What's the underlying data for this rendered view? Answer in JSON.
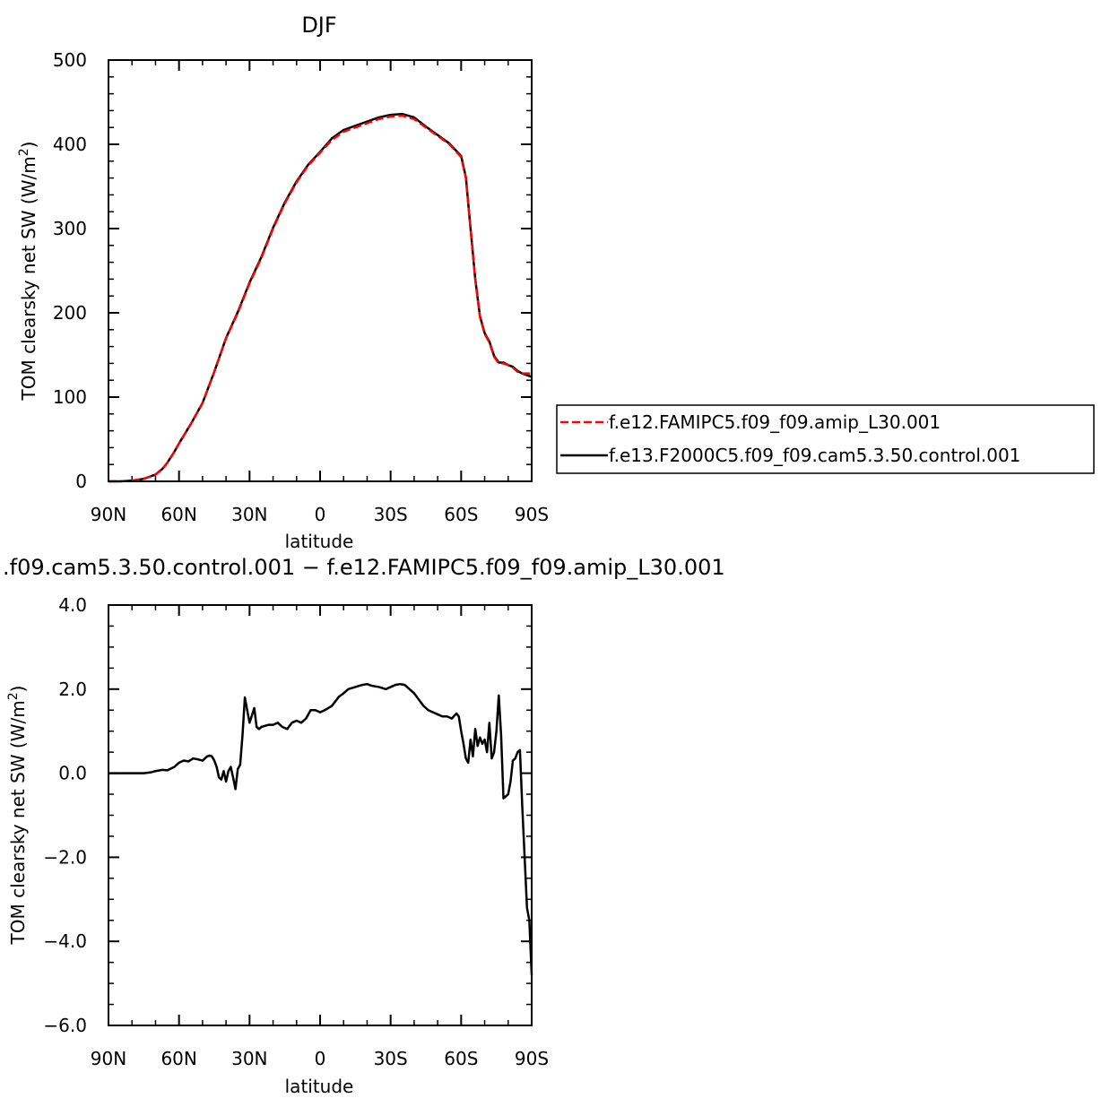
{
  "chart_data": [
    {
      "type": "line",
      "title": "DJF",
      "xlabel": "latitude",
      "ylabel": "TOM clearsky net SW (W/m²)",
      "ylabel_main": "TOM clearsky net SW (W/m",
      "ylabel_sup": "2",
      "ylabel_close": ")",
      "xlim": [
        90,
        -90
      ],
      "ylim": [
        0,
        500
      ],
      "x_ticks": [
        90,
        60,
        30,
        0,
        -30,
        -60,
        -90
      ],
      "x_tick_labels": [
        "90N",
        "60N",
        "30N",
        "0",
        "30S",
        "60S",
        "90S"
      ],
      "y_ticks": [
        0,
        100,
        200,
        300,
        400,
        500
      ],
      "y_tick_labels": [
        "0",
        "100",
        "200",
        "300",
        "400",
        "500"
      ],
      "legend_position": "right",
      "series": [
        {
          "name": "f.e12.FAMIPC5.f09_f09.amip_L30.001",
          "color": "#ff0000",
          "dash": "dashed",
          "x": [
            90,
            85,
            80,
            75,
            70,
            67,
            65,
            62,
            60,
            55,
            50,
            45,
            40,
            35,
            30,
            25,
            20,
            15,
            10,
            5,
            0,
            -5,
            -10,
            -15,
            -20,
            -25,
            -30,
            -35,
            -40,
            -45,
            -50,
            -55,
            -60,
            -62,
            -64,
            -66,
            -68,
            -70,
            -72,
            -74,
            -76,
            -78,
            -80,
            -82,
            -84,
            -86,
            -88,
            -90
          ],
          "y": [
            0,
            0,
            1,
            3,
            8,
            15,
            22,
            35,
            45,
            68,
            93,
            130,
            170,
            200,
            235,
            265,
            300,
            330,
            355,
            375,
            390,
            405,
            415,
            420,
            425,
            430,
            433,
            434,
            430,
            420,
            410,
            400,
            385,
            360,
            300,
            240,
            195,
            175,
            165,
            148,
            140,
            140,
            138,
            135,
            130,
            128,
            128,
            128
          ]
        },
        {
          "name": "f.e13.F2000C5.f09_f09.cam5.3.50.control.001",
          "color": "#000000",
          "dash": "solid",
          "x": [
            90,
            85,
            80,
            75,
            70,
            67,
            65,
            62,
            60,
            55,
            50,
            45,
            40,
            35,
            30,
            25,
            20,
            15,
            10,
            5,
            0,
            -5,
            -10,
            -15,
            -20,
            -25,
            -30,
            -35,
            -40,
            -45,
            -50,
            -55,
            -60,
            -62,
            -64,
            -66,
            -68,
            -70,
            -72,
            -74,
            -76,
            -78,
            -80,
            -82,
            -84,
            -86,
            -88,
            -90
          ],
          "y": [
            0,
            0,
            1,
            3,
            8,
            15,
            22,
            35,
            45,
            68,
            93,
            130,
            170,
            201,
            236,
            266,
            301,
            331,
            356,
            376,
            391,
            407,
            417,
            422,
            427,
            432,
            435,
            436,
            432,
            421,
            411,
            401,
            386,
            361,
            300,
            240,
            196,
            176,
            166,
            149,
            141,
            141,
            138,
            136,
            131,
            128,
            126,
            124
          ]
        }
      ]
    },
    {
      "type": "line",
      "title": ".f09.cam5.3.50.control.001 − f.e12.FAMIPC5.f09_f09.amip_L30.001",
      "xlabel": "latitude",
      "ylabel": "TOM clearsky net SW (W/m²)",
      "ylabel_main": "TOM clearsky net SW (W/m",
      "ylabel_sup": "2",
      "ylabel_close": ")",
      "xlim": [
        90,
        -90
      ],
      "ylim": [
        -6,
        4
      ],
      "x_ticks": [
        90,
        60,
        30,
        0,
        -30,
        -60,
        -90
      ],
      "x_tick_labels": [
        "90N",
        "60N",
        "30N",
        "0",
        "30S",
        "60S",
        "90S"
      ],
      "y_ticks": [
        -6,
        -4,
        -2,
        0,
        2,
        4
      ],
      "y_tick_labels": [
        "−6.0",
        "−4.0",
        "−2.0",
        "0.0",
        "2.0",
        "4.0"
      ],
      "series": [
        {
          "color": "#000000",
          "dash": "solid",
          "x": [
            90,
            80,
            75,
            72,
            70,
            67,
            65,
            62,
            60,
            58,
            56,
            54,
            52,
            50,
            49,
            48,
            47,
            46,
            45,
            44,
            43,
            42,
            41,
            40,
            39,
            38,
            37,
            36,
            35,
            34,
            33,
            32,
            30,
            28,
            27,
            26,
            25,
            22,
            20,
            18,
            16,
            14,
            12,
            10,
            8,
            6,
            4,
            2,
            0,
            -2,
            -5,
            -8,
            -10,
            -12,
            -15,
            -18,
            -20,
            -22,
            -25,
            -28,
            -30,
            -32,
            -34,
            -36,
            -38,
            -40,
            -42,
            -44,
            -46,
            -48,
            -50,
            -52,
            -54,
            -56,
            -58,
            -59,
            -60,
            -61,
            -62,
            -63,
            -64,
            -65,
            -66,
            -67,
            -68,
            -69,
            -70,
            -71,
            -72,
            -73,
            -74,
            -75,
            -76,
            -77,
            -78,
            -79,
            -80,
            -81,
            -82,
            -83,
            -84,
            -85,
            -86,
            -87,
            -88,
            -89,
            -90
          ],
          "y": [
            0,
            0,
            0,
            0.02,
            0.05,
            0.08,
            0.07,
            0.15,
            0.25,
            0.3,
            0.28,
            0.35,
            0.33,
            0.3,
            0.35,
            0.4,
            0.42,
            0.4,
            0.3,
            0.15,
            -0.1,
            -0.15,
            0.05,
            -0.2,
            0.05,
            0.15,
            -0.1,
            -0.38,
            0.1,
            0.2,
            0.9,
            1.8,
            1.2,
            1.55,
            1.1,
            1.05,
            1.1,
            1.15,
            1.15,
            1.2,
            1.1,
            1.05,
            1.2,
            1.25,
            1.2,
            1.3,
            1.5,
            1.5,
            1.45,
            1.5,
            1.6,
            1.82,
            1.9,
            2.0,
            2.05,
            2.1,
            2.12,
            2.08,
            2.05,
            2.0,
            2.05,
            2.1,
            2.12,
            2.1,
            2.0,
            1.9,
            1.75,
            1.6,
            1.5,
            1.45,
            1.4,
            1.35,
            1.35,
            1.3,
            1.42,
            1.35,
            1.0,
            0.7,
            0.35,
            0.25,
            0.8,
            0.4,
            1.05,
            0.65,
            0.85,
            0.7,
            0.8,
            0.5,
            1.2,
            0.35,
            0.5,
            1.0,
            1.85,
            0.9,
            -0.6,
            -0.55,
            -0.5,
            -0.2,
            0.3,
            0.35,
            0.5,
            0.55,
            -0.8,
            -2.0,
            -3.2,
            -3.5,
            -4.8
          ]
        }
      ]
    }
  ]
}
